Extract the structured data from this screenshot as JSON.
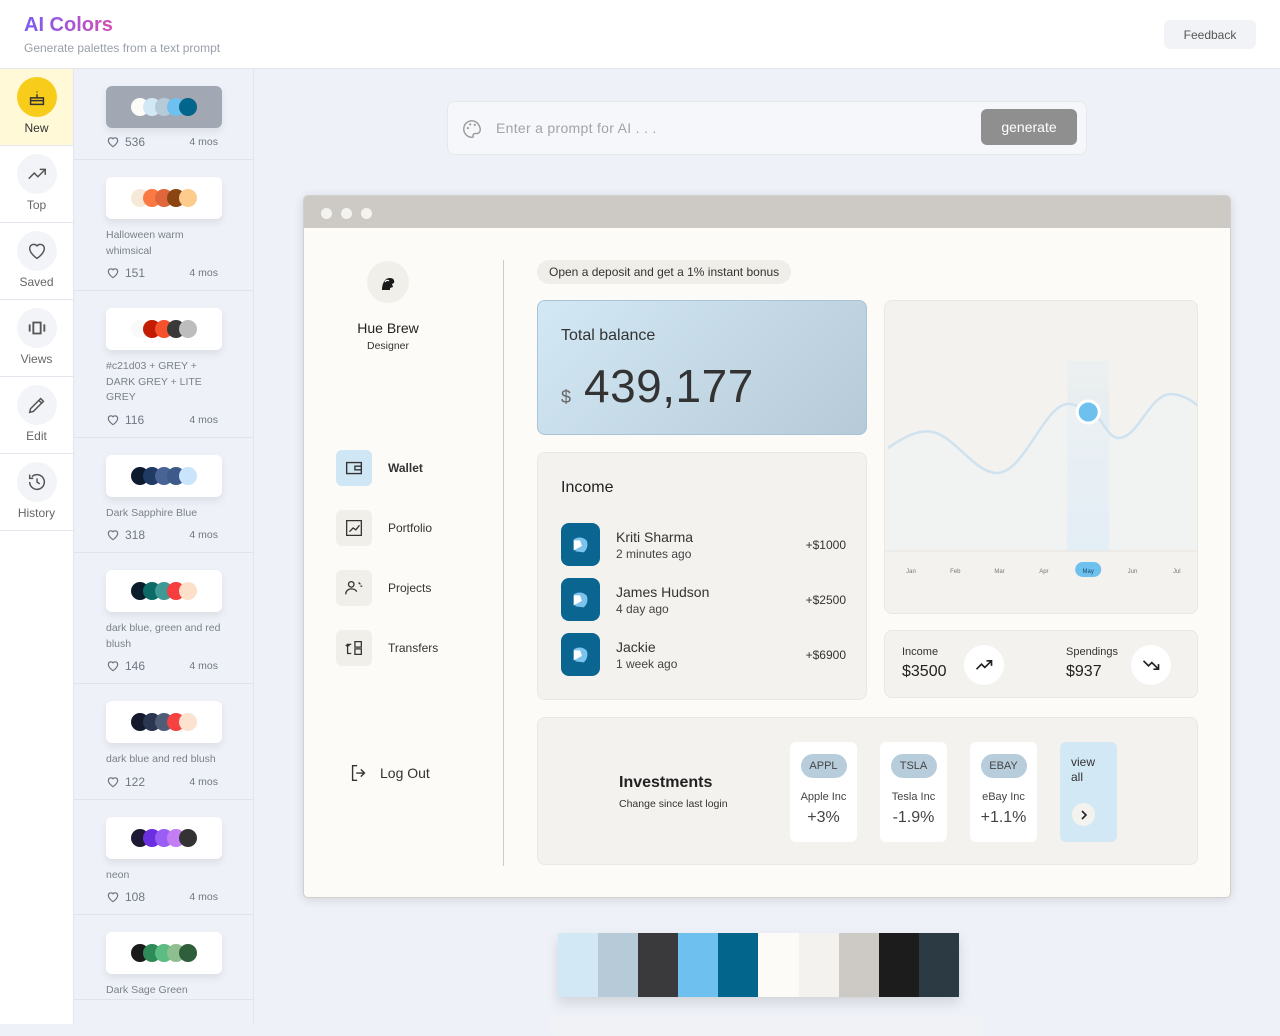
{
  "header": {
    "title": "AI Colors",
    "subtitle": "Generate palettes from a text prompt",
    "feedback_label": "Feedback"
  },
  "nav": [
    {
      "label": "New",
      "icon": "cake-icon",
      "active": true
    },
    {
      "label": "Top",
      "icon": "trending-up-icon"
    },
    {
      "label": "Saved",
      "icon": "heart-icon"
    },
    {
      "label": "Views",
      "icon": "carousel-icon"
    },
    {
      "label": "Edit",
      "icon": "pencil-icon"
    },
    {
      "label": "History",
      "icon": "history-icon"
    }
  ],
  "palettes": [
    {
      "name": "",
      "likes": "536",
      "age": "4 mos",
      "colors": [
        "#fcfbf7",
        "#d3e8f5",
        "#b6cad7",
        "#6ec0ee",
        "#01658c"
      ],
      "selected": true
    },
    {
      "name": "Halloween warm whimsical",
      "likes": "151",
      "age": "4 mos",
      "colors": [
        "#f6e9d7",
        "#fb7a44",
        "#e0673c",
        "#8b4513",
        "#fdcb8c"
      ]
    },
    {
      "name": "#c21d03 + GREY + DARK GREY + LITE GREY",
      "likes": "116",
      "age": "4 mos",
      "colors": [
        "#f9f9f9",
        "#c21d03",
        "#f4512c",
        "#393939",
        "#bdbdbd"
      ]
    },
    {
      "name": "Dark Sapphire Blue",
      "likes": "318",
      "age": "4 mos",
      "colors": [
        "#0d1b2f",
        "#1f3a63",
        "#4a6395",
        "#3d5a8a",
        "#c9e4fb"
      ]
    },
    {
      "name": "dark blue, green and red blush",
      "likes": "146",
      "age": "4 mos",
      "colors": [
        "#0b1d2d",
        "#0d6b67",
        "#3f9a95",
        "#f73d3d",
        "#fde0c9"
      ]
    },
    {
      "name": "dark blue and red blush",
      "likes": "122",
      "age": "4 mos",
      "colors": [
        "#141a2b",
        "#2a3650",
        "#4e5c78",
        "#f74242",
        "#fde3cf"
      ]
    },
    {
      "name": "neon",
      "likes": "108",
      "age": "4 mos",
      "colors": [
        "#1e1a33",
        "#6b2fe0",
        "#9a5ef6",
        "#c47ef3",
        "#333333"
      ]
    },
    {
      "name": "Dark Sage Green",
      "likes": "",
      "age": "",
      "colors": [
        "#1a1a1a",
        "#2e8a57",
        "#5bbd82",
        "#8fbf8f",
        "#2e5e3a"
      ]
    }
  ],
  "prompt": {
    "placeholder": "Enter a prompt for AI . . .",
    "value": "",
    "generate_label": "generate"
  },
  "mock": {
    "profile": {
      "name": "Hue Brew",
      "role": "Designer"
    },
    "menu": [
      {
        "label": "Wallet",
        "icon": "wallet-icon",
        "active": true
      },
      {
        "label": "Portfolio",
        "icon": "chart-icon"
      },
      {
        "label": "Projects",
        "icon": "users-icon"
      },
      {
        "label": "Transfers",
        "icon": "transfer-icon"
      }
    ],
    "logout_label": "Log Out",
    "promo": "Open a deposit and get a 1% instant bonus",
    "balance": {
      "title": "Total balance",
      "currency": "$",
      "amount": "439,177"
    },
    "income": {
      "title": "Income",
      "rows": [
        {
          "name": "Kriti Sharma",
          "time": "2 minutes ago",
          "amount": "+$1000"
        },
        {
          "name": "James Hudson",
          "time": "4 day ago",
          "amount": "+$2500"
        },
        {
          "name": "Jackie",
          "time": "1 week ago",
          "amount": "+$6900"
        }
      ]
    },
    "chart": {
      "months": [
        "Jan",
        "Feb",
        "Mar",
        "Apr",
        "May",
        "Jun",
        "Jul"
      ],
      "selected": "May"
    },
    "summary": {
      "income_label": "Income",
      "income_value": "$3500",
      "spend_label": "Spendings",
      "spend_value": "$937"
    },
    "investments": {
      "title": "Investments",
      "subtitle": "Change since last login",
      "stocks": [
        {
          "ticker": "APPL",
          "name": "Apple Inc",
          "change": "+3%"
        },
        {
          "ticker": "TSLA",
          "name": "Tesla Inc",
          "change": "-1.9%"
        },
        {
          "ticker": "EBAY",
          "name": "eBay Inc",
          "change": "+1.1%"
        }
      ],
      "view_all": "view all"
    }
  },
  "swatches": [
    "#d3e8f5",
    "#b6cad7",
    "#3a3a3c",
    "#6ec0ee",
    "#01658c",
    "#fcfbf7",
    "#f4f2ee",
    "#cdcac5",
    "#1c1c1c",
    "#2c3a43"
  ]
}
